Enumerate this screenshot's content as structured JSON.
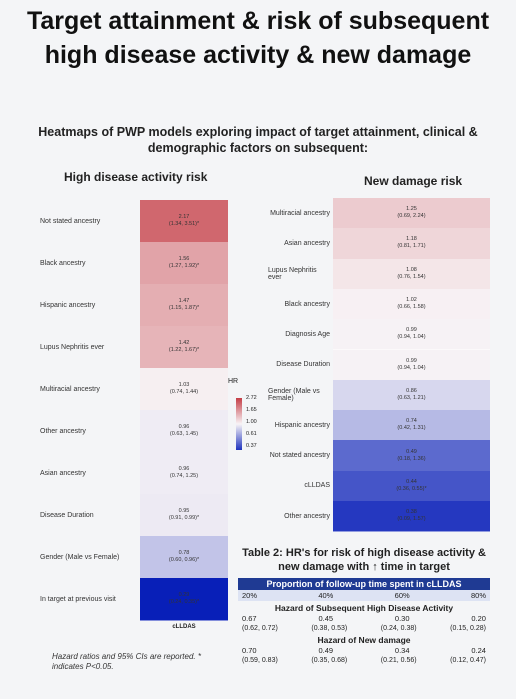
{
  "header": {
    "title": "Target attainment & risk of subsequent high disease activity & new damage",
    "subtitle": "Heatmaps of PWP models exploring impact of target attainment, clinical & demographic factors on subsequent:"
  },
  "left": {
    "title": "High disease activity risk",
    "column_label": "cLLDAS",
    "rows": [
      {
        "label": "Not stated ancestry",
        "hr": "2.17",
        "ci": "(1.34, 3.51)*"
      },
      {
        "label": "Black ancestry",
        "hr": "1.56",
        "ci": "(1.27, 1.92)*"
      },
      {
        "label": "Hispanic ancestry",
        "hr": "1.47",
        "ci": "(1.15, 1.87)*"
      },
      {
        "label": "Lupus Nephritis ever",
        "hr": "1.42",
        "ci": "(1.22, 1.67)*"
      },
      {
        "label": "Multiracial ancestry",
        "hr": "1.03",
        "ci": "(0.74, 1.44)"
      },
      {
        "label": "Other ancestry",
        "hr": "0.96",
        "ci": "(0.63, 1.45)"
      },
      {
        "label": "Asian ancestry",
        "hr": "0.96",
        "ci": "(0.74, 1.25)"
      },
      {
        "label": "Disease Duration",
        "hr": "0.95",
        "ci": "(0.91, 0.99)*"
      },
      {
        "label": "Gender (Male vs Female)",
        "hr": "0.78",
        "ci": "(0.60, 0.96)*"
      },
      {
        "label": "In target at previous visit",
        "hr": "0.29",
        "ci": "(0.24, 0.35)*"
      }
    ]
  },
  "legend": {
    "title": "HR",
    "ticks": [
      "2.72",
      "1.65",
      "1.00",
      "0.61",
      "0.37"
    ]
  },
  "right": {
    "title": "New damage risk",
    "rows": [
      {
        "label": "Multiracial ancestry",
        "hr": "1.25",
        "ci": "(0.69, 2.24)"
      },
      {
        "label": "Asian ancestry",
        "hr": "1.18",
        "ci": "(0.81, 1.71)"
      },
      {
        "label": "Lupus Nephritis ever",
        "hr": "1.08",
        "ci": "(0.76, 1.54)"
      },
      {
        "label": "Black ancestry",
        "hr": "1.02",
        "ci": "(0.66, 1.58)"
      },
      {
        "label": "Diagnosis Age",
        "hr": "0.99",
        "ci": "(0.94, 1.04)"
      },
      {
        "label": "Disease Duration",
        "hr": "0.99",
        "ci": "(0.94, 1.04)"
      },
      {
        "label": "Gender (Male vs Female)",
        "hr": "0.86",
        "ci": "(0.63, 1.21)"
      },
      {
        "label": "Hispanic ancestry",
        "hr": "0.74",
        "ci": "(0.42, 1.31)"
      },
      {
        "label": "Not stated ancestry",
        "hr": "0.49",
        "ci": "(0.18, 1.36)"
      },
      {
        "label": "cLLDAS",
        "hr": "0.44",
        "ci": "(0.36, 0.55)*"
      },
      {
        "label": "Other ancestry",
        "hr": "0.38",
        "ci": "(0.09, 1.57)"
      }
    ]
  },
  "table": {
    "title": "Table 2: HR's for risk of high disease activity & new damage with ↑ time in target",
    "header": "Proportion of follow-up time spent in cLLDAS",
    "columns": [
      "20%",
      "40%",
      "60%",
      "80%"
    ],
    "sections": [
      {
        "title": "Hazard of Subsequent High Disease Activity",
        "values": [
          "0.67",
          "0.45",
          "0.30",
          "0.20"
        ],
        "cis": [
          "(0.62, 0.72)",
          "(0.38, 0.53)",
          "(0.24, 0.38)",
          "(0.15, 0.28)"
        ]
      },
      {
        "title": "Hazard of New damage",
        "values": [
          "0.70",
          "0.49",
          "0.34",
          "0.24"
        ],
        "cis": [
          "(0.59, 0.83)",
          "(0.35, 0.68)",
          "(0.21, 0.56)",
          "(0.12, 0.47)"
        ]
      }
    ]
  },
  "footnote": "Hazard ratios and 95% CIs are reported. * indicates P<0.05."
}
